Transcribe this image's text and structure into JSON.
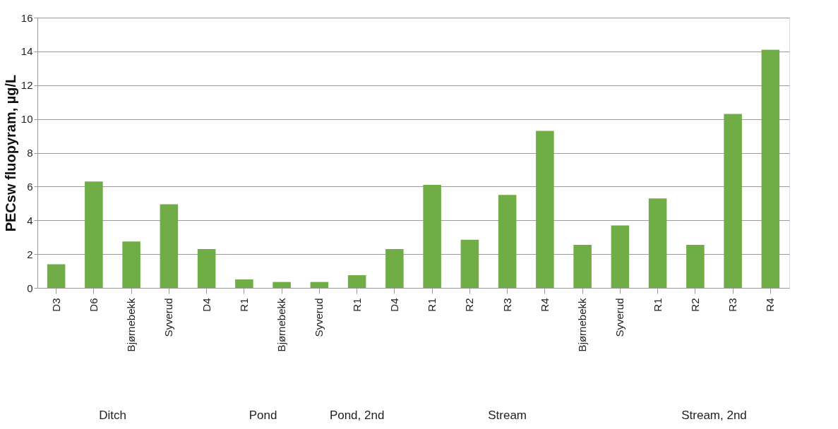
{
  "chart_data": {
    "type": "bar",
    "ylabel": "PECsw fluopyram, µg/L",
    "categories": [
      "D3",
      "D6",
      "Bjørnebekk",
      "Syverud",
      "D4",
      "R1",
      "Bjørnebekk",
      "Syverud",
      "R1",
      "D4",
      "R1",
      "R2",
      "R3",
      "R4",
      "Bjørnebekk",
      "Syverud",
      "R1",
      "R2",
      "R3",
      "R4"
    ],
    "values": [
      1.4,
      6.3,
      2.75,
      4.95,
      2.3,
      0.5,
      0.35,
      0.35,
      0.75,
      2.3,
      6.1,
      2.85,
      5.5,
      9.3,
      2.55,
      3.7,
      5.3,
      2.55,
      10.3,
      14.1
    ],
    "color": "#70ad47",
    "ylim": [
      0,
      16
    ],
    "yticks": [
      0,
      2,
      4,
      6,
      8,
      10,
      12,
      14,
      16
    ],
    "grid": "y",
    "annotations": [
      "Ditch",
      "Pond",
      "Pond, 2nd",
      "Stream",
      "Stream, 2nd"
    ]
  }
}
